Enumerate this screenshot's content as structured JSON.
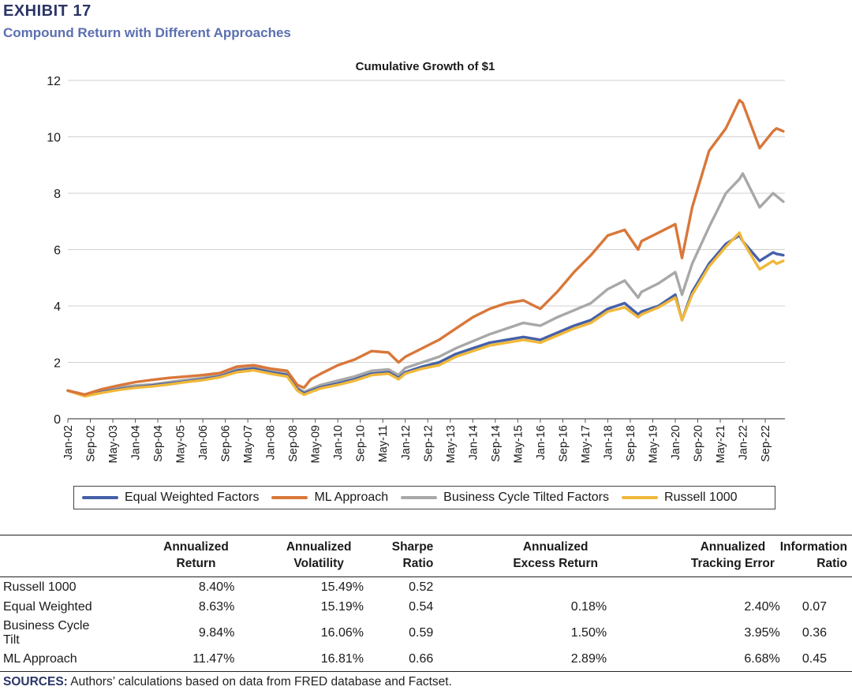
{
  "header": {
    "exhibit": "EXHIBIT 17",
    "title": "Compound Return with Different Approaches"
  },
  "colors": {
    "equal_weighted": "#4660a8",
    "ml": "#d9773a",
    "business_cycle": "#a8a8a8",
    "russell": "#f0b83a",
    "grid": "#d0d0d0"
  },
  "chart_data": {
    "type": "line",
    "title": "Cumulative Growth of $1",
    "xlabel": "",
    "ylabel": "",
    "ylim": [
      0,
      12
    ],
    "yticks": [
      "0",
      "2",
      "4",
      "6",
      "8",
      "10",
      "12"
    ],
    "x_tick_labels": [
      "Jan-02",
      "Sep-02",
      "May-03",
      "Jan-04",
      "Sep-04",
      "May-05",
      "Jan-06",
      "Sep-06",
      "May-07",
      "Jan-08",
      "Sep-08",
      "May-09",
      "Jan-10",
      "Sep-10",
      "May-11",
      "Jan-12",
      "Sep-12",
      "May-13",
      "Jan-14",
      "Sep-14",
      "May-15",
      "Jan-16",
      "Sep-16",
      "May-17",
      "Jan-18",
      "Sep-18",
      "May-19",
      "Jan-20",
      "Sep-20",
      "May-21",
      "Jan-22",
      "Sep-22"
    ],
    "x_years": [
      2002.0,
      2002.5,
      2003.0,
      2003.5,
      2004.0,
      2004.5,
      2005.0,
      2005.5,
      2006.0,
      2006.5,
      2007.0,
      2007.5,
      2008.0,
      2008.5,
      2008.8,
      2009.0,
      2009.2,
      2009.5,
      2010.0,
      2010.5,
      2011.0,
      2011.5,
      2011.8,
      2012.0,
      2012.5,
      2013.0,
      2013.5,
      2014.0,
      2014.5,
      2015.0,
      2015.5,
      2016.0,
      2016.5,
      2017.0,
      2017.5,
      2018.0,
      2018.5,
      2018.9,
      2019.0,
      2019.5,
      2020.0,
      2020.2,
      2020.5,
      2021.0,
      2021.5,
      2021.9,
      2022.0,
      2022.5,
      2022.9,
      2023.0,
      2023.2
    ],
    "x_range": [
      2002.0,
      2023.25
    ],
    "series": [
      {
        "name": "Business Cycle Tilted Factors",
        "color_key": "business_cycle",
        "values": [
          1.0,
          0.85,
          1.0,
          1.1,
          1.18,
          1.22,
          1.3,
          1.38,
          1.45,
          1.55,
          1.75,
          1.85,
          1.7,
          1.6,
          1.1,
          0.95,
          1.05,
          1.2,
          1.35,
          1.5,
          1.7,
          1.75,
          1.55,
          1.8,
          2.0,
          2.2,
          2.5,
          2.75,
          3.0,
          3.2,
          3.4,
          3.3,
          3.6,
          3.85,
          4.1,
          4.6,
          4.9,
          4.3,
          4.5,
          4.8,
          5.2,
          4.4,
          5.5,
          6.8,
          8.0,
          8.5,
          8.7,
          7.5,
          8.0,
          7.9,
          7.7
        ]
      },
      {
        "name": "Equal Weighted Factors",
        "color_key": "equal_weighted",
        "values": [
          1.0,
          0.82,
          0.95,
          1.05,
          1.12,
          1.18,
          1.25,
          1.32,
          1.4,
          1.5,
          1.7,
          1.78,
          1.65,
          1.55,
          1.05,
          0.9,
          1.0,
          1.12,
          1.25,
          1.4,
          1.6,
          1.65,
          1.45,
          1.65,
          1.85,
          2.0,
          2.3,
          2.5,
          2.7,
          2.8,
          2.9,
          2.8,
          3.05,
          3.3,
          3.5,
          3.9,
          4.1,
          3.7,
          3.8,
          4.0,
          4.4,
          3.5,
          4.5,
          5.5,
          6.2,
          6.5,
          6.3,
          5.6,
          5.9,
          5.85,
          5.8
        ]
      },
      {
        "name": "Russell 1000",
        "color_key": "russell",
        "values": [
          1.0,
          0.8,
          0.92,
          1.02,
          1.1,
          1.15,
          1.22,
          1.3,
          1.37,
          1.47,
          1.65,
          1.72,
          1.6,
          1.5,
          1.0,
          0.85,
          0.95,
          1.08,
          1.2,
          1.35,
          1.55,
          1.6,
          1.4,
          1.6,
          1.78,
          1.9,
          2.2,
          2.4,
          2.6,
          2.7,
          2.8,
          2.7,
          2.95,
          3.2,
          3.4,
          3.8,
          3.95,
          3.6,
          3.7,
          3.95,
          4.3,
          3.5,
          4.4,
          5.4,
          6.1,
          6.6,
          6.3,
          5.3,
          5.6,
          5.5,
          5.6
        ]
      },
      {
        "name": "ML Approach",
        "color_key": "ml",
        "values": [
          1.0,
          0.86,
          1.05,
          1.18,
          1.3,
          1.38,
          1.45,
          1.5,
          1.55,
          1.62,
          1.85,
          1.9,
          1.78,
          1.7,
          1.2,
          1.1,
          1.4,
          1.6,
          1.9,
          2.1,
          2.4,
          2.35,
          2.0,
          2.2,
          2.5,
          2.8,
          3.2,
          3.6,
          3.9,
          4.1,
          4.2,
          3.9,
          4.5,
          5.2,
          5.8,
          6.5,
          6.7,
          6.0,
          6.3,
          6.6,
          6.9,
          5.7,
          7.5,
          9.5,
          10.3,
          11.3,
          11.2,
          9.6,
          10.2,
          10.3,
          10.2
        ]
      }
    ]
  },
  "legend": [
    {
      "label": "Equal Weighted Factors",
      "color_key": "equal_weighted"
    },
    {
      "label": "ML Approach",
      "color_key": "ml"
    },
    {
      "label": "Business Cycle Tilted Factors",
      "color_key": "business_cycle"
    },
    {
      "label": "Russell 1000",
      "color_key": "russell"
    }
  ],
  "table": {
    "headers": [
      [
        "",
        ""
      ],
      [
        "Annualized",
        "Return"
      ],
      [
        "Annualized",
        "Volatility"
      ],
      [
        "",
        "Sharpe Ratio"
      ],
      [
        "Annualized",
        "Excess Return"
      ],
      [
        "Annualized",
        "Tracking Error"
      ],
      [
        "Information",
        "Ratio"
      ]
    ],
    "rows": [
      [
        "Russell 1000",
        "8.40%",
        "15.49%",
        "0.52",
        "",
        "",
        ""
      ],
      [
        "Equal Weighted",
        "8.63%",
        "15.19%",
        "0.54",
        "0.18%",
        "2.40%",
        "0.07"
      ],
      [
        "Business Cycle Tilt",
        "9.84%",
        "16.06%",
        "0.59",
        "1.50%",
        "3.95%",
        "0.36"
      ],
      [
        "ML Approach",
        "11.47%",
        "16.81%",
        "0.66",
        "2.89%",
        "6.68%",
        "0.45"
      ]
    ]
  },
  "sources": {
    "label": "SOURCES:",
    "text": "Authors’ calculations based on data from FRED database and Factset."
  }
}
